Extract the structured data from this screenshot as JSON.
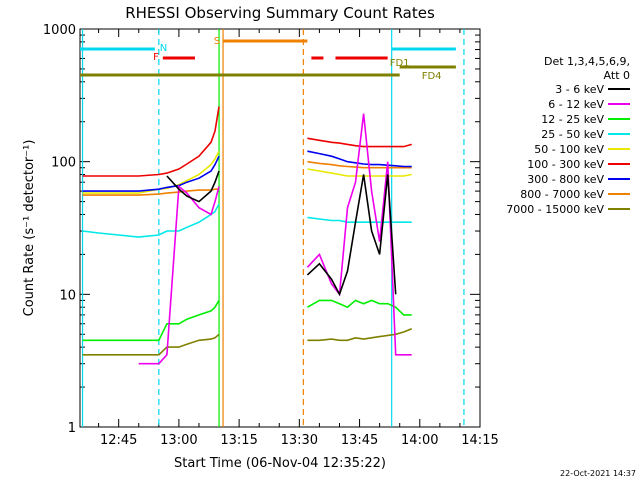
{
  "chart_data": {
    "type": "line",
    "title": "RHESSI Observing Summary Count Rates",
    "xlabel": "Start Time (06-Nov-04 12:35:22)",
    "ylabel": "Count Rate (s⁻¹ detector⁻¹)",
    "yscale": "log",
    "ylim": [
      1,
      1000
    ],
    "xlim": [
      "12:35:22",
      "14:15:00"
    ],
    "xticks": [
      "12:45",
      "13:00",
      "13:15",
      "13:30",
      "13:45",
      "14:00",
      "14:15"
    ],
    "yticks": [
      "1",
      "10",
      "100",
      "1000"
    ],
    "legend_header": [
      "Det 1,3,4,5,6,9,",
      "Att 0"
    ],
    "legend_placement": "right",
    "timestamp": "22-Oct-2021 14:37",
    "flags": [
      {
        "label": "N",
        "color": "#00d8f0",
        "segments": [
          [
            "12:35:22",
            "12:54:00"
          ],
          [
            "13:53:00",
            "14:09:00"
          ]
        ]
      },
      {
        "label": "F",
        "color": "#ee0000",
        "segments": [
          [
            "12:56:00",
            "13:04:00"
          ],
          [
            "13:33:00",
            "13:36:00"
          ],
          [
            "13:39:00",
            "13:52:00"
          ]
        ]
      },
      {
        "label": "S",
        "color": "#f08000",
        "segments": [
          [
            "13:11:00",
            "13:32:00"
          ]
        ]
      },
      {
        "label": "FD1",
        "color": "#808000",
        "segments": [
          [
            "13:55:00",
            "14:09:00"
          ]
        ]
      },
      {
        "label": "FD4",
        "color": "#808000",
        "segments": [
          [
            "12:35:22",
            "13:55:00"
          ]
        ]
      }
    ],
    "series": [
      {
        "name": "3 - 6 keV",
        "color": "#000000"
      },
      {
        "name": "6 - 12 keV",
        "color": "#ee00ee"
      },
      {
        "name": "12 - 25 keV",
        "color": "#00ee00"
      },
      {
        "name": "25 - 50 keV",
        "color": "#00e8e8"
      },
      {
        "name": "50 - 100 keV",
        "color": "#e8e800"
      },
      {
        "name": "100 - 300 keV",
        "color": "#ee0000"
      },
      {
        "name": "300 - 800 keV",
        "color": "#0000ee"
      },
      {
        "name": "800 - 7000 keV",
        "color": "#f08000"
      },
      {
        "name": "7000 - 15000 keV",
        "color": "#808000"
      }
    ],
    "vlines": [
      {
        "time": "12:36:00",
        "color": "#00d8f0",
        "style": "solid"
      },
      {
        "time": "12:55:00",
        "color": "#00d8f0",
        "style": "dashed"
      },
      {
        "time": "13:10:00",
        "color": "#00ee00",
        "style": "solid"
      },
      {
        "time": "13:11:00",
        "color": "#f08000",
        "style": "solid"
      },
      {
        "time": "13:31:00",
        "color": "#f08000",
        "style": "dashed"
      },
      {
        "time": "13:53:00",
        "color": "#00d8f0",
        "style": "solid"
      },
      {
        "time": "14:11:00",
        "color": "#00d8f0",
        "style": "dashed"
      }
    ],
    "data": {
      "segment1_times": [
        "12:36",
        "12:40",
        "12:45",
        "12:50",
        "12:55",
        "12:57",
        "13:00",
        "13:02",
        "13:05",
        "13:08",
        "13:09",
        "13:10"
      ],
      "segment2_times": [
        "13:32",
        "13:35",
        "13:38",
        "13:40",
        "13:42",
        "13:44",
        "13:46",
        "13:48",
        "13:50",
        "13:52",
        "13:54",
        "13:56",
        "13:58"
      ],
      "3 - 6 keV": {
        "s1": [
          null,
          null,
          null,
          null,
          null,
          78,
          62,
          55,
          50,
          60,
          70,
          85
        ],
        "s2": [
          14,
          17,
          13,
          10,
          15,
          35,
          80,
          30,
          20,
          80,
          10,
          null,
          null
        ]
      },
      "6 - 12 keV": {
        "s1": [
          null,
          null,
          null,
          3,
          3,
          3.5,
          65,
          58,
          45,
          40,
          50,
          65
        ],
        "s2": [
          16,
          20,
          12,
          10,
          45,
          70,
          230,
          60,
          25,
          100,
          3.5,
          3.5,
          3.5
        ]
      },
      "12 - 25 keV": {
        "s1": [
          4.5,
          4.5,
          4.5,
          4.5,
          4.5,
          6,
          6,
          6.5,
          7,
          7.5,
          8,
          9
        ],
        "s2": [
          8,
          9,
          9,
          8.5,
          8,
          9,
          8.5,
          9,
          8.5,
          8.5,
          8,
          7,
          7
        ]
      },
      "25 - 50 keV": {
        "s1": [
          30,
          29,
          28,
          27,
          28,
          30,
          30,
          32,
          35,
          40,
          42,
          48
        ],
        "s2": [
          38,
          37,
          36,
          36,
          35,
          35,
          35,
          35,
          35,
          35,
          35,
          35,
          35
        ]
      },
      "50 - 100 keV": {
        "s1": [
          58,
          58,
          58,
          58,
          62,
          63,
          67,
          72,
          80,
          95,
          105,
          120
        ],
        "s2": [
          88,
          85,
          82,
          80,
          78,
          78,
          78,
          78,
          78,
          78,
          78,
          78,
          80
        ]
      },
      "100 - 300 keV": {
        "s1": [
          78,
          78,
          78,
          78,
          80,
          82,
          88,
          96,
          110,
          140,
          170,
          260
        ],
        "s2": [
          150,
          145,
          140,
          138,
          135,
          132,
          130,
          130,
          130,
          130,
          130,
          130,
          135
        ]
      },
      "300 - 800 keV": {
        "s1": [
          60,
          60,
          60,
          60,
          62,
          64,
          66,
          70,
          75,
          85,
          95,
          110
        ],
        "s2": [
          120,
          115,
          110,
          105,
          100,
          98,
          96,
          95,
          95,
          94,
          93,
          92,
          92
        ]
      },
      "800 - 7000 keV": {
        "s1": [
          56,
          56,
          56,
          56,
          57,
          58,
          59,
          60,
          61,
          61,
          62,
          62
        ],
        "s2": [
          100,
          97,
          95,
          93,
          92,
          91,
          90,
          90,
          90,
          90,
          90,
          90,
          90
        ]
      },
      "7000 - 15000 keV": {
        "s1": [
          3.5,
          3.5,
          3.5,
          3.5,
          3.5,
          4,
          4,
          4.2,
          4.5,
          4.6,
          4.7,
          5
        ],
        "s2": [
          4.5,
          4.5,
          4.6,
          4.5,
          4.5,
          4.7,
          4.6,
          4.7,
          4.8,
          4.9,
          5,
          5.2,
          5.5
        ]
      }
    }
  }
}
